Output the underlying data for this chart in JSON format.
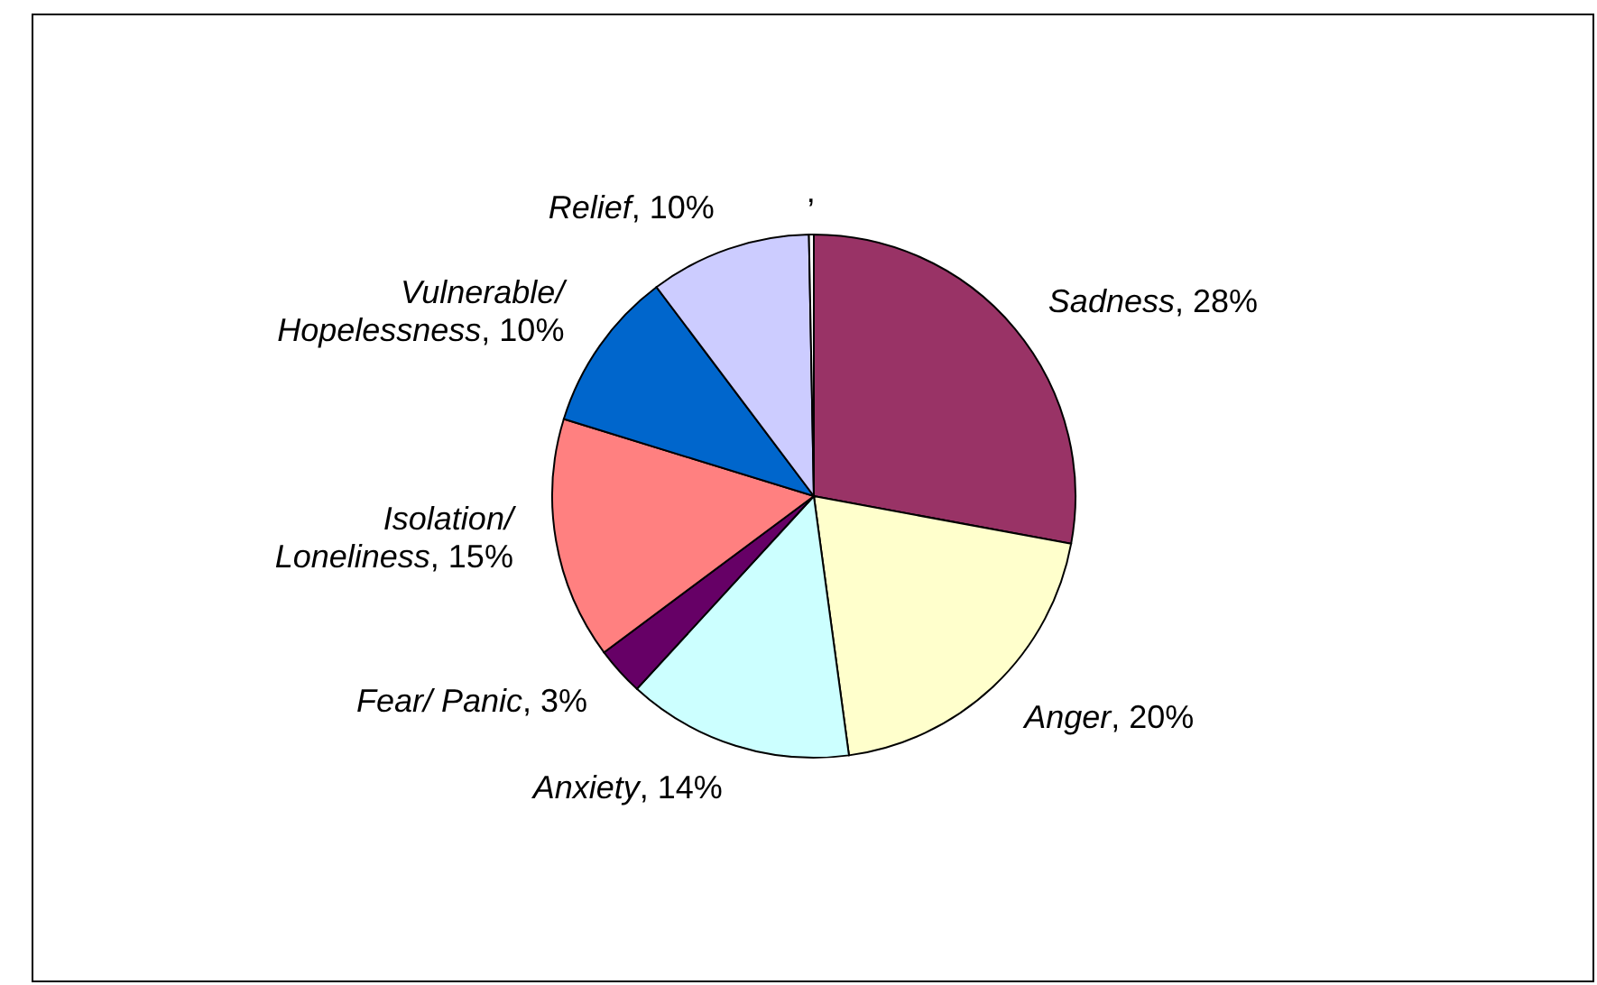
{
  "chart_data": {
    "type": "pie",
    "categories": [
      "Sadness",
      "Anger",
      "Anxiety",
      "Fear/ Panic",
      "Isolation/ Loneliness",
      "Vulnerable/ Hopelessness",
      "Relief",
      null
    ],
    "values": [
      28,
      20,
      14,
      3,
      15,
      10,
      10,
      0.3
    ],
    "value_labels": [
      ", 28%",
      ", 20%",
      ", 14%",
      ", 3%",
      ", 15%",
      ", 10%",
      ", 10%",
      ","
    ],
    "colors": [
      "#993366",
      "#ffffcc",
      "#ccffff",
      "#660066",
      "#ff8080",
      "#0066cc",
      "#ccccff",
      "#ffffff"
    ]
  }
}
